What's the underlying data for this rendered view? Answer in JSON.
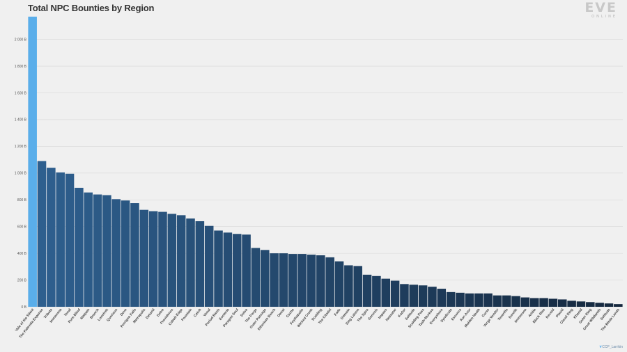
{
  "header": {
    "title": "Total NPC Bounties by Region"
  },
  "logo": {
    "main": "EVE",
    "sub": "ONLINE"
  },
  "credit": "CCP_Larrikin",
  "colors": {
    "highlight": "#5aaeea",
    "dark_start": "#2e5f8e",
    "dark_end": "#15283e",
    "grid": "#d6d6d6"
  },
  "chart_data": {
    "type": "bar",
    "title": "Total NPC Bounties by Region",
    "xlabel": "",
    "ylabel": "",
    "ylim": [
      0,
      2180
    ],
    "yticks": [
      0,
      200,
      400,
      600,
      800,
      1000,
      1200,
      1400,
      1600,
      1800,
      2000
    ],
    "ytick_labels": [
      "0 B",
      "200 B",
      "400 B",
      "600 B",
      "800 B",
      "1 000 B",
      "1 200 B",
      "1 400 B",
      "1 600 B",
      "1 800 B",
      "2 000 B"
    ],
    "grid": true,
    "legend": "none",
    "categories": [
      "Vale of the Silent",
      "The Kalevala Expanse",
      "Tribute",
      "Immensea",
      "Tenal",
      "Pure Blind",
      "Malpais",
      "Branch",
      "Lonetrek",
      "Querious",
      "Deve",
      "Perrigen Falls",
      "Metropolis",
      "Detorid",
      "Delve",
      "Providence",
      "Cobalt Edge",
      "Fountain",
      "Catch",
      "Venal",
      "Period Basis",
      "Esoteria",
      "Paragon Soul",
      "Delve",
      "The Forge",
      "Outer Passage",
      "Etherium Reach",
      "Omist",
      "Cache",
      "Feythabolis",
      "Wicked Creek",
      "Scalding",
      "The Citadel",
      "Fade",
      "Domain",
      "Sing Laison",
      "The Spire",
      "Genesis",
      "Impass",
      "Heimatar",
      "Kador",
      "Solitude",
      "Scalding Pass",
      "Tash-Murkon",
      "Everyshore",
      "Syndicate",
      "Essence",
      "Kor-Azor",
      "Molden Heath",
      "Curse",
      "Verge Vendor",
      "Tenerifis",
      "Derelik",
      "Immensea",
      "Aridia",
      "Black Rise",
      "Devoid",
      "Placid",
      "Cloud Ring",
      "Khanid",
      "Outer Ring",
      "Great Wildlands",
      "Solitude",
      "The Bleak Lands"
    ],
    "values": [
      2170,
      1090,
      1040,
      1005,
      995,
      890,
      855,
      840,
      835,
      805,
      795,
      775,
      725,
      715,
      710,
      695,
      685,
      660,
      640,
      605,
      570,
      555,
      545,
      540,
      440,
      425,
      400,
      400,
      395,
      395,
      390,
      385,
      370,
      340,
      310,
      305,
      240,
      230,
      210,
      195,
      170,
      165,
      160,
      150,
      135,
      110,
      105,
      100,
      100,
      100,
      85,
      85,
      80,
      70,
      65,
      65,
      60,
      55,
      45,
      40,
      35,
      30,
      25,
      20
    ],
    "highlight_index": 0
  }
}
